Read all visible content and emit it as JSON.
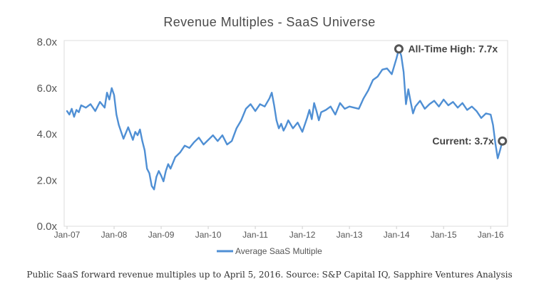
{
  "colors": {
    "series": "#4f8fd4",
    "marker": "#555555"
  },
  "caption": "Public SaaS forward revenue multiples up to April 5, 2016. Source: S&P Capital IQ, Sapphire Ventures Analysis",
  "chart_data": {
    "type": "line",
    "title": "Revenue Multiples - SaaS Universe",
    "xlabel": "",
    "ylabel": "",
    "ylim": [
      0,
      8
    ],
    "grid": false,
    "legend_position": "bottom",
    "y_ticks": [
      0,
      2,
      4,
      6,
      8
    ],
    "y_tick_labels": [
      "0.0x",
      "2.0x",
      "4.0x",
      "6.0x",
      "8.0x"
    ],
    "x_tick_labels": [
      "Jan-07",
      "Jan-08",
      "Jan-09",
      "Jan-10",
      "Jan-11",
      "Jan-12",
      "Jan-13",
      "Jan-14",
      "Jan-15",
      "Jan-16"
    ],
    "x_tick_positions": [
      2007,
      2008,
      2009,
      2010,
      2011,
      2012,
      2013,
      2014,
      2015,
      2016
    ],
    "xlim": [
      2007,
      2016.3
    ],
    "series": [
      {
        "name": "Average SaaS Multiple",
        "x": [
          2007.0,
          2007.05,
          2007.1,
          2007.15,
          2007.2,
          2007.25,
          2007.3,
          2007.4,
          2007.5,
          2007.6,
          2007.7,
          2007.8,
          2007.85,
          2007.9,
          2007.95,
          2008.0,
          2008.05,
          2008.1,
          2008.15,
          2008.2,
          2008.3,
          2008.4,
          2008.45,
          2008.5,
          2008.55,
          2008.6,
          2008.65,
          2008.7,
          2008.75,
          2008.8,
          2008.85,
          2008.9,
          2008.95,
          2009.0,
          2009.05,
          2009.1,
          2009.15,
          2009.2,
          2009.3,
          2009.4,
          2009.5,
          2009.6,
          2009.7,
          2009.8,
          2009.9,
          2010.0,
          2010.1,
          2010.2,
          2010.3,
          2010.4,
          2010.5,
          2010.6,
          2010.7,
          2010.8,
          2010.9,
          2011.0,
          2011.1,
          2011.2,
          2011.3,
          2011.35,
          2011.4,
          2011.45,
          2011.5,
          2011.55,
          2011.6,
          2011.65,
          2011.7,
          2011.8,
          2011.9,
          2012.0,
          2012.1,
          2012.15,
          2012.2,
          2012.25,
          2012.3,
          2012.35,
          2012.4,
          2012.5,
          2012.6,
          2012.7,
          2012.8,
          2012.9,
          2013.0,
          2013.1,
          2013.2,
          2013.3,
          2013.4,
          2013.5,
          2013.6,
          2013.7,
          2013.8,
          2013.9,
          2014.0,
          2014.05,
          2014.1,
          2014.15,
          2014.2,
          2014.25,
          2014.3,
          2014.35,
          2014.4,
          2014.5,
          2014.6,
          2014.7,
          2014.8,
          2014.9,
          2015.0,
          2015.1,
          2015.2,
          2015.3,
          2015.4,
          2015.5,
          2015.6,
          2015.7,
          2015.8,
          2015.9,
          2016.0,
          2016.05,
          2016.1,
          2016.15,
          2016.2,
          2016.25
        ],
        "values": [
          5.0,
          4.85,
          5.1,
          4.75,
          5.05,
          4.95,
          5.25,
          5.15,
          5.3,
          5.0,
          5.4,
          5.15,
          5.8,
          5.5,
          6.0,
          5.7,
          4.85,
          4.4,
          4.1,
          3.8,
          4.3,
          3.75,
          4.1,
          3.95,
          4.2,
          3.7,
          3.3,
          2.5,
          2.3,
          1.75,
          1.6,
          2.15,
          2.4,
          2.2,
          1.95,
          2.4,
          2.7,
          2.5,
          3.0,
          3.2,
          3.5,
          3.4,
          3.65,
          3.85,
          3.55,
          3.75,
          3.95,
          3.7,
          3.95,
          3.55,
          3.7,
          4.25,
          4.6,
          5.1,
          5.3,
          5.0,
          5.3,
          5.2,
          5.55,
          5.8,
          5.25,
          4.6,
          4.25,
          4.45,
          4.15,
          4.35,
          4.6,
          4.25,
          4.5,
          4.1,
          4.7,
          5.05,
          4.65,
          5.35,
          5.0,
          4.6,
          4.95,
          5.05,
          5.2,
          4.85,
          5.35,
          5.1,
          5.2,
          5.15,
          5.1,
          5.55,
          5.9,
          6.35,
          6.5,
          6.8,
          6.85,
          6.6,
          7.3,
          7.7,
          7.4,
          6.7,
          5.3,
          5.95,
          5.4,
          4.9,
          5.2,
          5.45,
          5.1,
          5.3,
          5.45,
          5.2,
          5.5,
          5.25,
          5.4,
          5.15,
          5.35,
          5.05,
          5.2,
          5.0,
          4.7,
          4.9,
          4.85,
          4.4,
          3.6,
          2.95,
          3.3,
          3.7
        ],
        "annotations": [
          {
            "label": "All-Time High: 7.7x",
            "x": 2014.05,
            "y": 7.7
          },
          {
            "label": "Current: 3.7x",
            "x": 2016.25,
            "y": 3.7
          }
        ]
      }
    ]
  }
}
